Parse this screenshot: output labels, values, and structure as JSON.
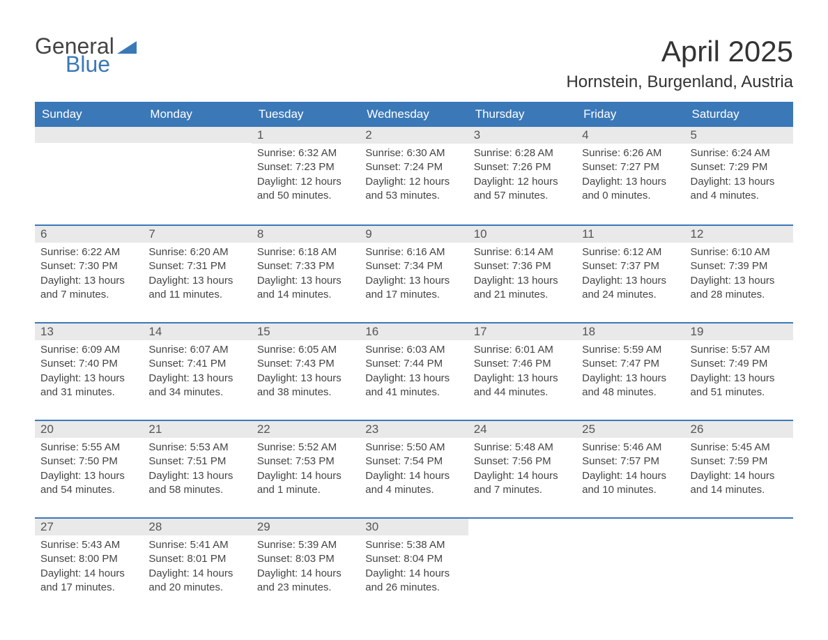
{
  "logo": {
    "general": "General",
    "blue": "Blue"
  },
  "title": "April 2025",
  "location": "Hornstein, Burgenland, Austria",
  "colors": {
    "header_bg": "#3b78b8",
    "header_text": "#ffffff",
    "daynum_bg": "#e9e9e9",
    "week_border": "#3b78b8",
    "body_text": "#444444",
    "title_text": "#333333",
    "logo_blue": "#3b78b8",
    "logo_gray": "#444444",
    "page_bg": "#ffffff"
  },
  "fonts": {
    "title_size_pt": 32,
    "location_size_pt": 18,
    "dow_size_pt": 13,
    "daynum_size_pt": 13,
    "body_size_pt": 11
  },
  "dow": [
    "Sunday",
    "Monday",
    "Tuesday",
    "Wednesday",
    "Thursday",
    "Friday",
    "Saturday"
  ],
  "weeks": [
    [
      {
        "n": "",
        "sr": "",
        "ss": "",
        "dl": ""
      },
      {
        "n": "",
        "sr": "",
        "ss": "",
        "dl": ""
      },
      {
        "n": "1",
        "sr": "Sunrise: 6:32 AM",
        "ss": "Sunset: 7:23 PM",
        "dl": "Daylight: 12 hours and 50 minutes."
      },
      {
        "n": "2",
        "sr": "Sunrise: 6:30 AM",
        "ss": "Sunset: 7:24 PM",
        "dl": "Daylight: 12 hours and 53 minutes."
      },
      {
        "n": "3",
        "sr": "Sunrise: 6:28 AM",
        "ss": "Sunset: 7:26 PM",
        "dl": "Daylight: 12 hours and 57 minutes."
      },
      {
        "n": "4",
        "sr": "Sunrise: 6:26 AM",
        "ss": "Sunset: 7:27 PM",
        "dl": "Daylight: 13 hours and 0 minutes."
      },
      {
        "n": "5",
        "sr": "Sunrise: 6:24 AM",
        "ss": "Sunset: 7:29 PM",
        "dl": "Daylight: 13 hours and 4 minutes."
      }
    ],
    [
      {
        "n": "6",
        "sr": "Sunrise: 6:22 AM",
        "ss": "Sunset: 7:30 PM",
        "dl": "Daylight: 13 hours and 7 minutes."
      },
      {
        "n": "7",
        "sr": "Sunrise: 6:20 AM",
        "ss": "Sunset: 7:31 PM",
        "dl": "Daylight: 13 hours and 11 minutes."
      },
      {
        "n": "8",
        "sr": "Sunrise: 6:18 AM",
        "ss": "Sunset: 7:33 PM",
        "dl": "Daylight: 13 hours and 14 minutes."
      },
      {
        "n": "9",
        "sr": "Sunrise: 6:16 AM",
        "ss": "Sunset: 7:34 PM",
        "dl": "Daylight: 13 hours and 17 minutes."
      },
      {
        "n": "10",
        "sr": "Sunrise: 6:14 AM",
        "ss": "Sunset: 7:36 PM",
        "dl": "Daylight: 13 hours and 21 minutes."
      },
      {
        "n": "11",
        "sr": "Sunrise: 6:12 AM",
        "ss": "Sunset: 7:37 PM",
        "dl": "Daylight: 13 hours and 24 minutes."
      },
      {
        "n": "12",
        "sr": "Sunrise: 6:10 AM",
        "ss": "Sunset: 7:39 PM",
        "dl": "Daylight: 13 hours and 28 minutes."
      }
    ],
    [
      {
        "n": "13",
        "sr": "Sunrise: 6:09 AM",
        "ss": "Sunset: 7:40 PM",
        "dl": "Daylight: 13 hours and 31 minutes."
      },
      {
        "n": "14",
        "sr": "Sunrise: 6:07 AM",
        "ss": "Sunset: 7:41 PM",
        "dl": "Daylight: 13 hours and 34 minutes."
      },
      {
        "n": "15",
        "sr": "Sunrise: 6:05 AM",
        "ss": "Sunset: 7:43 PM",
        "dl": "Daylight: 13 hours and 38 minutes."
      },
      {
        "n": "16",
        "sr": "Sunrise: 6:03 AM",
        "ss": "Sunset: 7:44 PM",
        "dl": "Daylight: 13 hours and 41 minutes."
      },
      {
        "n": "17",
        "sr": "Sunrise: 6:01 AM",
        "ss": "Sunset: 7:46 PM",
        "dl": "Daylight: 13 hours and 44 minutes."
      },
      {
        "n": "18",
        "sr": "Sunrise: 5:59 AM",
        "ss": "Sunset: 7:47 PM",
        "dl": "Daylight: 13 hours and 48 minutes."
      },
      {
        "n": "19",
        "sr": "Sunrise: 5:57 AM",
        "ss": "Sunset: 7:49 PM",
        "dl": "Daylight: 13 hours and 51 minutes."
      }
    ],
    [
      {
        "n": "20",
        "sr": "Sunrise: 5:55 AM",
        "ss": "Sunset: 7:50 PM",
        "dl": "Daylight: 13 hours and 54 minutes."
      },
      {
        "n": "21",
        "sr": "Sunrise: 5:53 AM",
        "ss": "Sunset: 7:51 PM",
        "dl": "Daylight: 13 hours and 58 minutes."
      },
      {
        "n": "22",
        "sr": "Sunrise: 5:52 AM",
        "ss": "Sunset: 7:53 PM",
        "dl": "Daylight: 14 hours and 1 minute."
      },
      {
        "n": "23",
        "sr": "Sunrise: 5:50 AM",
        "ss": "Sunset: 7:54 PM",
        "dl": "Daylight: 14 hours and 4 minutes."
      },
      {
        "n": "24",
        "sr": "Sunrise: 5:48 AM",
        "ss": "Sunset: 7:56 PM",
        "dl": "Daylight: 14 hours and 7 minutes."
      },
      {
        "n": "25",
        "sr": "Sunrise: 5:46 AM",
        "ss": "Sunset: 7:57 PM",
        "dl": "Daylight: 14 hours and 10 minutes."
      },
      {
        "n": "26",
        "sr": "Sunrise: 5:45 AM",
        "ss": "Sunset: 7:59 PM",
        "dl": "Daylight: 14 hours and 14 minutes."
      }
    ],
    [
      {
        "n": "27",
        "sr": "Sunrise: 5:43 AM",
        "ss": "Sunset: 8:00 PM",
        "dl": "Daylight: 14 hours and 17 minutes."
      },
      {
        "n": "28",
        "sr": "Sunrise: 5:41 AM",
        "ss": "Sunset: 8:01 PM",
        "dl": "Daylight: 14 hours and 20 minutes."
      },
      {
        "n": "29",
        "sr": "Sunrise: 5:39 AM",
        "ss": "Sunset: 8:03 PM",
        "dl": "Daylight: 14 hours and 23 minutes."
      },
      {
        "n": "30",
        "sr": "Sunrise: 5:38 AM",
        "ss": "Sunset: 8:04 PM",
        "dl": "Daylight: 14 hours and 26 minutes."
      },
      {
        "n": "",
        "sr": "",
        "ss": "",
        "dl": ""
      },
      {
        "n": "",
        "sr": "",
        "ss": "",
        "dl": ""
      },
      {
        "n": "",
        "sr": "",
        "ss": "",
        "dl": ""
      }
    ]
  ]
}
